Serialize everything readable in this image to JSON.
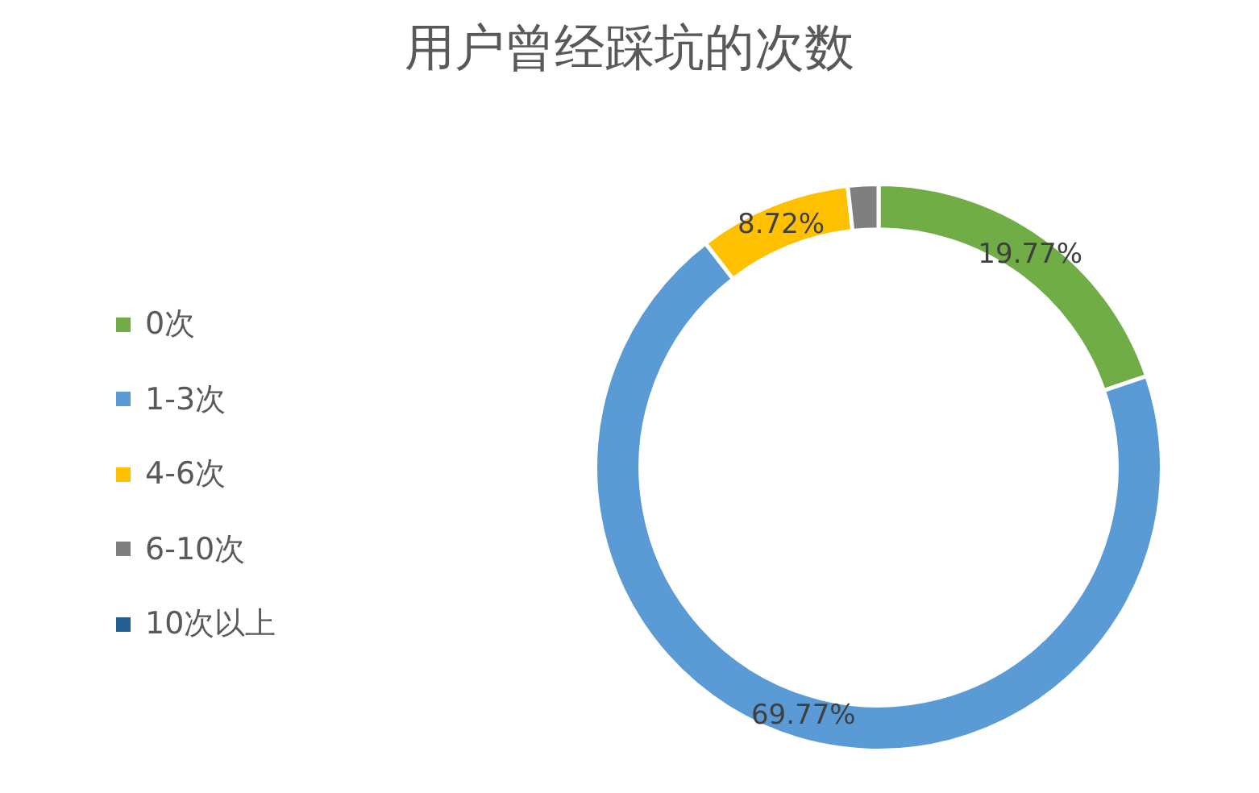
{
  "chart_data": {
    "type": "donut",
    "title": "用户曾经踩坑的次数",
    "categories": [
      "0次",
      "1-3次",
      "4-6次",
      "6-10次",
      "10次以上"
    ],
    "values": [
      19.77,
      69.77,
      8.72,
      1.74,
      0
    ],
    "colors": [
      "#70ad47",
      "#5b9bd5",
      "#ffc000",
      "#7f7f7f",
      "#255e91"
    ],
    "value_labels": [
      "19.77%",
      "69.77%",
      "8.72%",
      null,
      null
    ],
    "legend": "left"
  }
}
